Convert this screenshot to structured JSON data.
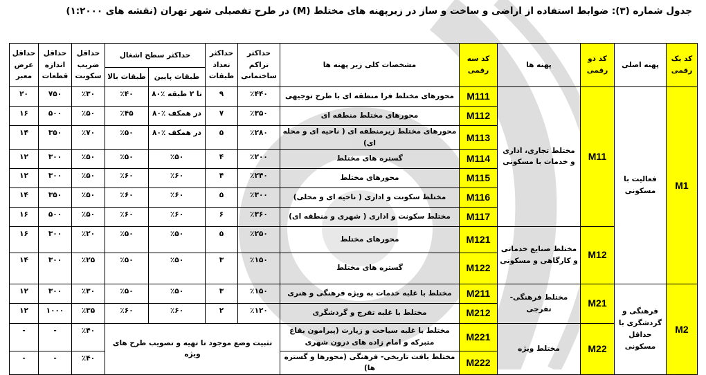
{
  "title": "جدول شماره (۳): ضوابط استفاده از اراضی و ساخت و ساز در زیرپهنه های مختلط (M) در طرح تفصیلی شهر تهران (نقشه های ۱:۲۰۰۰)",
  "colors": {
    "code_highlight": "#ffff00",
    "border": "#000000",
    "watermark": "#c8c8c8"
  },
  "headers": {
    "code1": "کد یک رقمی",
    "main_zone": "پهنه اصلی",
    "code2": "کد دو رقمی",
    "zones": "پهنه ها",
    "code3": "کد سه رقمی",
    "desc": "مشخصات کلی زیر پهنه ها",
    "density": "حداکثر تراکم ساختمانی",
    "floors": "حداکثر تعداد طبقات",
    "coverage": "حداکثر سطح اشغال",
    "lower": "طبقات پایین",
    "upper": "طبقات بالا",
    "res_coef": "حداقل ضریب سکونت",
    "plot": "حداقل اندازه قطعات",
    "width": "حداقل عرض معبر"
  },
  "groups": [
    {
      "code": "M1",
      "name": "فعالیت با مسکونی"
    },
    {
      "code": "M2",
      "name": "فرهنگی و گردشگری با حداقل مسکونی"
    }
  ],
  "subgroups": [
    {
      "code": "M11",
      "name": "مختلط تجاری، اداری و خدمات با مسکونی"
    },
    {
      "code": "M12",
      "name": "مختلط صنایع خدماتی و کارگاهی و مسکونی"
    },
    {
      "code": "M21",
      "name": "مختلط فرهنگی- تفرجی"
    },
    {
      "code": "M22",
      "name": "مختلط ویژه"
    }
  ],
  "special_note": "تثبیت وضع موجود تا تهیه و تصویب طرح های ویژه",
  "rows": [
    {
      "code": "M111",
      "desc": "محورهای مختلط فرا منطقه ای با طرح توجیهی",
      "density": "٪۴۴۰",
      "floors": "۹",
      "lower": "۸۰٪ تا ۲ طبقه",
      "upper": "٪۴۰",
      "res_coef": "٪۳۰",
      "plot": "۷۵۰",
      "width": "۲۰"
    },
    {
      "code": "M112",
      "desc": "محورهای مختلط منطقه ای",
      "density": "٪۳۵۰",
      "floors": "۷",
      "lower": "۸۰٪ در همکف",
      "upper": "٪۴۵",
      "res_coef": "٪۵۰",
      "plot": "۵۰۰",
      "width": "۱۶"
    },
    {
      "code": "M113",
      "desc": "محورهای مختلط زیرمنطقه ای ( ناحیه ای و محله ای)",
      "density": "٪۲۸۰",
      "floors": "۵",
      "lower": "۸۰٪ در همکف",
      "upper": "٪۵۰",
      "res_coef": "٪۷۰",
      "plot": "۳۵۰",
      "width": "۱۴"
    },
    {
      "code": "M114",
      "desc": "گستره های مختلط",
      "density": "٪۲۰۰",
      "floors": "۴",
      "lower": "٪۵۰",
      "upper": "٪۵۰",
      "res_coef": "٪۵۰",
      "plot": "۳۰۰",
      "width": "۱۲"
    },
    {
      "code": "M115",
      "desc": "محورهای مختلط",
      "density": "٪۲۴۰",
      "floors": "۴",
      "lower": "٪۶۰",
      "upper": "٪۶۰",
      "res_coef": "٪۵۰",
      "plot": "۳۰۰",
      "width": "۱۲"
    },
    {
      "code": "M116",
      "desc": "مختلط سکونت و اداری ( ناحیه ای و محلی)",
      "density": "٪۳۰۰",
      "floors": "۵",
      "lower": "٪۶۰",
      "upper": "٪۶۰",
      "res_coef": "٪۵۰",
      "plot": "۳۵۰",
      "width": "۱۴"
    },
    {
      "code": "M117",
      "desc": "مختلط سکونت و اداری ( شهری و منطقه ای)",
      "density": "٪۳۶۰",
      "floors": "۶",
      "lower": "٪۶۰",
      "upper": "٪۶۰",
      "res_coef": "٪۵۰",
      "plot": "۵۰۰",
      "width": "۱۶"
    },
    {
      "code": "M121",
      "desc": "محورهای مختلط",
      "density": "٪۲۵۰",
      "floors": "۵",
      "lower": "٪۵۰",
      "upper": "٪۵۰",
      "res_coef": "٪۲۰",
      "plot": "۳۰۰",
      "width": "۱۶"
    },
    {
      "code": "M122",
      "desc": "گستره های مختلط",
      "density": "٪۱۵۰",
      "floors": "۳",
      "lower": "٪۵۰",
      "upper": "٪۵۰",
      "res_coef": "٪۲۵",
      "plot": "۳۰۰",
      "width": "۱۴"
    },
    {
      "code": "M211",
      "desc": "مختلط با غلبه خدمات به ویژه فرهنگی و هنری",
      "density": "٪۱۵۰",
      "floors": "۳",
      "lower": "٪۵۰",
      "upper": "٪۵۰",
      "res_coef": "٪۳۰",
      "plot": "۳۰۰",
      "width": "۱۲"
    },
    {
      "code": "M212",
      "desc": "مختلط با غلبه تفرج و گردشگری",
      "density": "٪۱۲۰",
      "floors": "۲",
      "lower": "٪۶۰",
      "upper": "٪۶۰",
      "res_coef": "٪۳۵",
      "plot": "۱۰۰۰",
      "width": "۱۲"
    },
    {
      "code": "M221",
      "desc": "مختلط با غلبه سیاحت و زیارت (پیرامون بقاع متبرکه و امام زاده های درون شهری",
      "res_coef": "٪۴۰",
      "plot": "-",
      "width": "-"
    },
    {
      "code": "M222",
      "desc": "مختلط بافت تاریخی- فرهنگی (محورها و گستره ها)",
      "res_coef": "٪۴۰",
      "plot": "-",
      "width": "-"
    }
  ]
}
